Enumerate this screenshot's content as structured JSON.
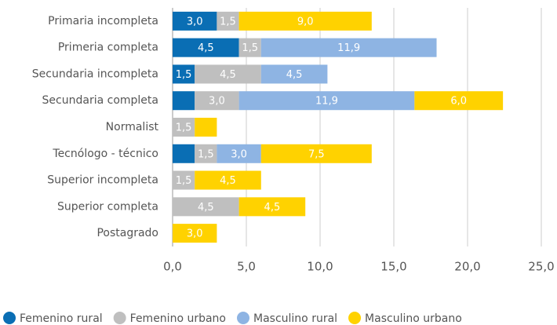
{
  "chart_data": {
    "type": "bar",
    "orientation": "horizontal",
    "stacked": true,
    "grid": true,
    "legend": "bottom",
    "categories": [
      "Primaria incompleta",
      "Primeria completa",
      "Secundaria incompleta",
      "Secundaria completa",
      "Normalist",
      "Tecnólogo - técnico",
      "Superior incompleta",
      "Superior completa",
      "Postagrado"
    ],
    "series": [
      {
        "name": "Femenino rural",
        "color": "#0a6eb4",
        "values": [
          3.0,
          4.5,
          1.5,
          1.5,
          null,
          1.5,
          null,
          null,
          null
        ],
        "value_labels": [
          "3,0",
          "4,5",
          "1,5",
          null,
          null,
          null,
          null,
          null,
          null
        ]
      },
      {
        "name": "Femenino urbano",
        "color": "#bfbfbf",
        "values": [
          1.5,
          1.5,
          4.5,
          3.0,
          1.5,
          1.5,
          1.5,
          4.5,
          null
        ],
        "value_labels": [
          "1,5",
          "1,5",
          "4,5",
          "3,0",
          "1,5",
          "1,5",
          "1,5",
          "4,5",
          null
        ]
      },
      {
        "name": "Masculino rural",
        "color": "#8eb4e3",
        "values": [
          null,
          11.9,
          4.5,
          11.9,
          null,
          3.0,
          null,
          null,
          null
        ],
        "value_labels": [
          null,
          "11,9",
          "4,5",
          "11,9",
          null,
          "3,0",
          null,
          null,
          null
        ]
      },
      {
        "name": "Masculino urbano",
        "color": "#ffd200",
        "values": [
          9.0,
          null,
          null,
          6.0,
          1.5,
          7.5,
          4.5,
          4.5,
          3.0
        ],
        "value_labels": [
          "9,0",
          null,
          null,
          "6,0",
          null,
          "7,5",
          "4,5",
          "4,5",
          "3,0"
        ]
      }
    ],
    "xlim": [
      0,
      25
    ],
    "xticks": [
      {
        "value": 0,
        "label": "0,0"
      },
      {
        "value": 5,
        "label": "5,0"
      },
      {
        "value": 10,
        "label": "10,0"
      },
      {
        "value": 15,
        "label": "15,0"
      },
      {
        "value": 20,
        "label": "20,0"
      },
      {
        "value": 25,
        "label": "25,0"
      }
    ]
  }
}
